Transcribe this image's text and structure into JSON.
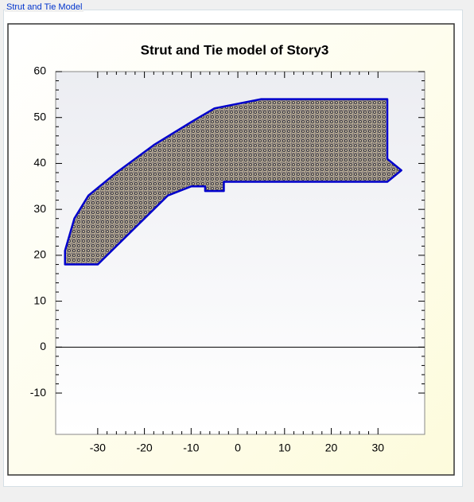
{
  "group_label": "Strut and Tie Model",
  "chart_data": {
    "type": "polygon",
    "title": "Strut and Tie model of Story3",
    "xlim": [
      -39,
      40
    ],
    "ylim": [
      -19,
      60
    ],
    "xticks": [
      -30,
      -20,
      -10,
      0,
      10,
      20,
      30
    ],
    "yticks": [
      -10,
      0,
      10,
      20,
      30,
      40,
      50,
      60
    ],
    "series": [
      {
        "color": "#0000cc",
        "x": [
          -37,
          -30,
          -22,
          -15,
          -10,
          -7,
          -7,
          -3,
          -3,
          32,
          35,
          32,
          32,
          5,
          -5,
          -10,
          -18,
          -26,
          -32,
          -35,
          -37
        ],
        "values": [
          18,
          18,
          26,
          33,
          35,
          35,
          34,
          34,
          36,
          36,
          38.5,
          41,
          54,
          54,
          52,
          49,
          44,
          38,
          33,
          28,
          21
        ]
      }
    ]
  }
}
